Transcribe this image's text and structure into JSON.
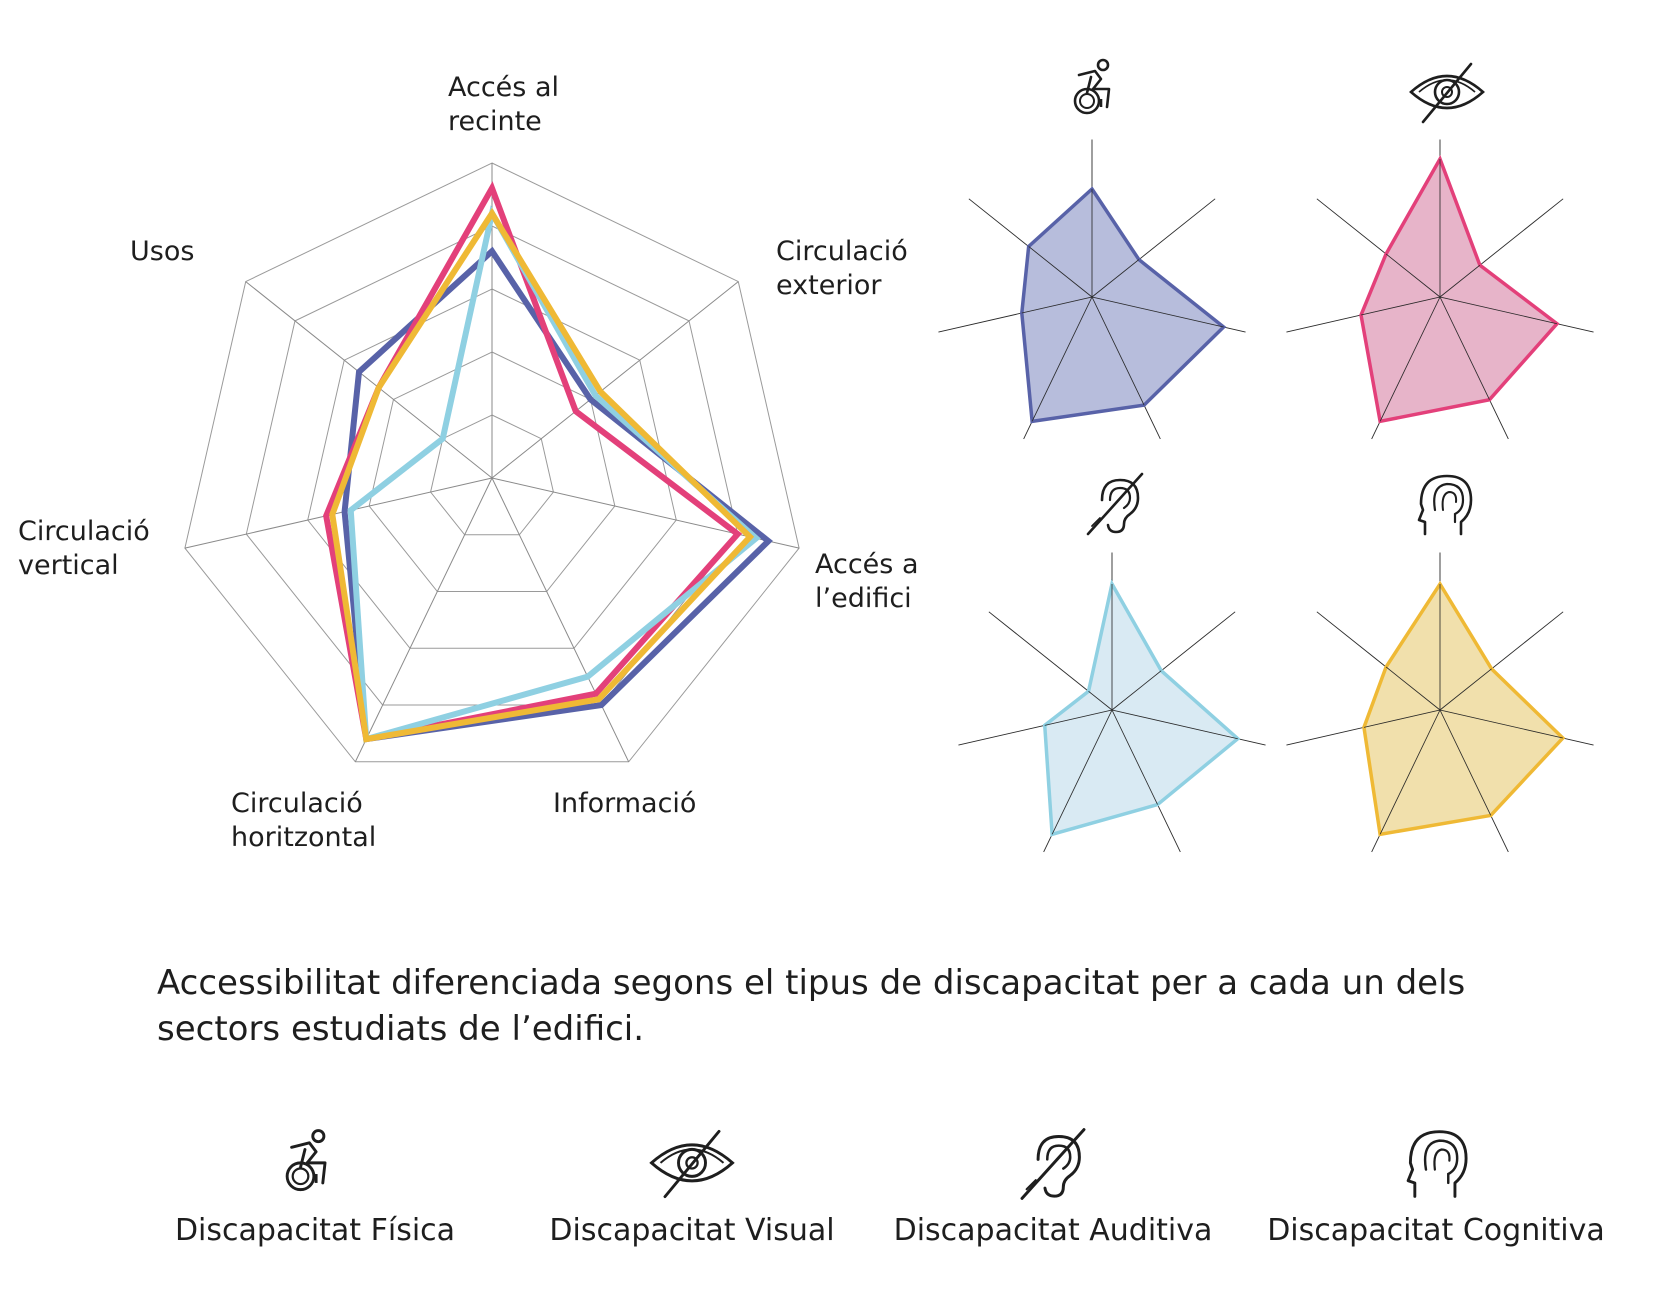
{
  "chart_data": {
    "type": "radar",
    "axes": [
      "Accés al recinte",
      "Circulació exterior",
      "Accés a l’edifici",
      "Informació",
      "Circulació horitzontal",
      "Circulació vertical",
      "Usos"
    ],
    "axis_labels": [
      [
        "Accés al",
        "recinte"
      ],
      [
        "Circulació",
        "exterior"
      ],
      [
        "Accés a",
        "l’edifici"
      ],
      [
        "Informació"
      ],
      [
        "Circulació",
        "horitzontal"
      ],
      [
        "Circulació",
        "vertical"
      ],
      [
        "Usos"
      ]
    ],
    "range": [
      0,
      5
    ],
    "rings": 5,
    "grid": true,
    "series": [
      {
        "name": "Discapacitat Física",
        "color": "#5862a8",
        "fill": "#aab2d6",
        "icon": "wheelchair-icon",
        "values": [
          3.6,
          2.0,
          4.5,
          4.0,
          4.6,
          2.4,
          2.7
        ]
      },
      {
        "name": "Discapacitat Visual",
        "color": "#e3407a",
        "fill": "#e3a7c0",
        "icon": "eye-slash-icon",
        "values": [
          4.6,
          1.7,
          4.0,
          3.8,
          4.6,
          2.7,
          2.3
        ]
      },
      {
        "name": "Discapacitat Auditiva",
        "color": "#8fd0e2",
        "fill": "#d2e6f1",
        "icon": "ear-slash-icon",
        "values": [
          4.2,
          2.1,
          4.3,
          3.5,
          4.6,
          2.3,
          1.0
        ]
      },
      {
        "name": "Discapacitat Cognitiva",
        "color": "#efb935",
        "fill": "#efdb9e",
        "icon": "brain-head-icon",
        "values": [
          4.2,
          2.2,
          4.2,
          3.9,
          4.6,
          2.6,
          2.3
        ]
      }
    ]
  },
  "caption": "Accessibilitat diferenciada segons el tipus de discapacitat per a cada un dels sectors estudiats de l’edifici.",
  "legend": [
    {
      "label": "Discapacitat Física",
      "icon": "wheelchair-icon"
    },
    {
      "label": "Discapacitat Visual",
      "icon": "eye-slash-icon"
    },
    {
      "label": "Discapacitat Auditiva",
      "icon": "ear-slash-icon"
    },
    {
      "label": "Discapacitat Cognitiva",
      "icon": "brain-head-icon"
    }
  ]
}
